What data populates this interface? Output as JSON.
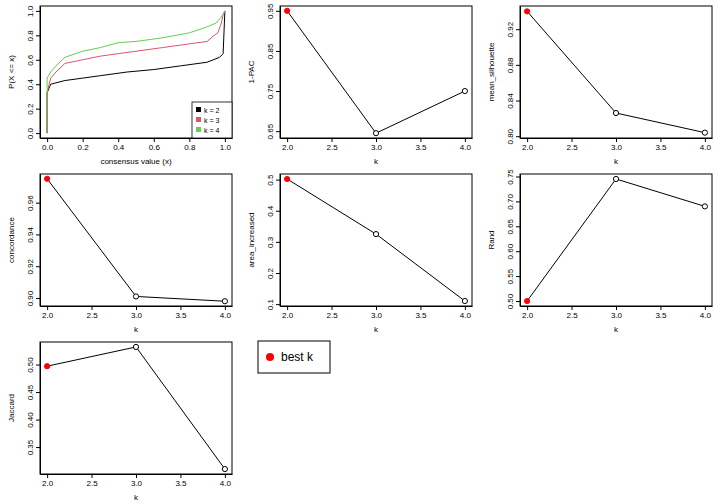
{
  "chart_data": [
    {
      "type": "line",
      "x_label": "consensus value (x)",
      "y_label": "P(X <= x)",
      "legend": "bottom-right",
      "xlim": [
        -0.04,
        1.04
      ],
      "xticks": [
        {
          "value": 0,
          "label": "0.0"
        },
        0.2,
        0.4,
        0.6,
        0.8,
        {
          "value": 1,
          "label": "1.0"
        }
      ],
      "ylim": [
        -0.04,
        1.04
      ],
      "yticks": [
        {
          "value": 0,
          "label": "0.0"
        },
        0.2,
        0.4,
        0.6,
        0.8,
        {
          "value": 1,
          "label": "1.0"
        }
      ],
      "series": [
        {
          "name": "k = 2",
          "color": "#000000",
          "x": [
            0,
            0,
            0.02,
            0.1,
            0.2,
            0.3,
            0.45,
            0.6,
            0.75,
            0.9,
            0.97,
            0.99,
            1.0
          ],
          "values": [
            0,
            0.33,
            0.4,
            0.43,
            0.45,
            0.47,
            0.5,
            0.52,
            0.55,
            0.58,
            0.62,
            0.65,
            1.0
          ]
        },
        {
          "name": "k = 3",
          "color": "#DF536B",
          "x": [
            0,
            0,
            0.02,
            0.05,
            0.1,
            0.2,
            0.3,
            0.4,
            0.5,
            0.65,
            0.8,
            0.9,
            0.94,
            0.96,
            0.98,
            0.99,
            1.0
          ],
          "values": [
            0,
            0.33,
            0.45,
            0.5,
            0.57,
            0.6,
            0.63,
            0.65,
            0.67,
            0.7,
            0.73,
            0.75,
            0.8,
            0.82,
            0.9,
            0.97,
            1.0
          ]
        },
        {
          "name": "k = 4",
          "color": "#61D04F",
          "x": [
            0,
            0,
            0.02,
            0.05,
            0.1,
            0.2,
            0.3,
            0.4,
            0.5,
            0.65,
            0.8,
            0.9,
            0.95,
            0.98,
            1.0
          ],
          "values": [
            0,
            0.45,
            0.5,
            0.55,
            0.62,
            0.67,
            0.7,
            0.74,
            0.75,
            0.78,
            0.82,
            0.87,
            0.9,
            0.95,
            1.0
          ]
        }
      ]
    },
    {
      "type": "line",
      "x_label": "k",
      "y_label": "1-PAC",
      "x": [
        2,
        3,
        4
      ],
      "values": [
        0.95,
        0.645,
        0.75
      ],
      "color": "#000000",
      "colors": [
        "#FF0000",
        "#FFFFFF",
        "#FFFFFF"
      ],
      "marker": "circle",
      "xlim": [
        1.92,
        4.08
      ],
      "xticks": [
        {
          "value": 2,
          "label": "2.0"
        },
        {
          "value": 2.5,
          "label": "2.5"
        },
        {
          "value": 3,
          "label": "3.0"
        },
        {
          "value": 3.5,
          "label": "3.5"
        },
        {
          "value": 4,
          "label": "4.0"
        }
      ],
      "ylim": [
        0.633,
        0.962
      ],
      "yticks": [
        0.65,
        0.75,
        0.85,
        0.95
      ]
    },
    {
      "type": "line",
      "x_label": "k",
      "y_label": "mean_silhouette",
      "x": [
        2,
        3,
        4
      ],
      "values": [
        0.94,
        0.826,
        0.804
      ],
      "color": "#000000",
      "colors": [
        "#FF0000",
        "#FFFFFF",
        "#FFFFFF"
      ],
      "marker": "circle",
      "xlim": [
        1.92,
        4.08
      ],
      "xticks": [
        {
          "value": 2,
          "label": "2.0"
        },
        {
          "value": 2.5,
          "label": "2.5"
        },
        {
          "value": 3,
          "label": "3.0"
        },
        {
          "value": 3.5,
          "label": "3.5"
        },
        {
          "value": 4,
          "label": "4.0"
        }
      ],
      "ylim": [
        0.798,
        0.946
      ],
      "yticks": [
        {
          "value": 0.8,
          "label": "0.80"
        },
        0.84,
        0.88,
        0.92
      ]
    },
    {
      "type": "line",
      "x_label": "k",
      "y_label": "concordance",
      "x": [
        2,
        3,
        4
      ],
      "values": [
        0.975,
        0.901,
        0.898
      ],
      "color": "#000000",
      "colors": [
        "#FF0000",
        "#FFFFFF",
        "#FFFFFF"
      ],
      "marker": "circle",
      "xlim": [
        1.92,
        4.08
      ],
      "xticks": [
        {
          "value": 2,
          "label": "2.0"
        },
        {
          "value": 2.5,
          "label": "2.5"
        },
        {
          "value": 3,
          "label": "3.0"
        },
        {
          "value": 3.5,
          "label": "3.5"
        },
        {
          "value": 4,
          "label": "4.0"
        }
      ],
      "ylim": [
        0.895,
        0.978
      ],
      "yticks": [
        {
          "value": 0.9,
          "label": "0.90"
        },
        0.92,
        0.94,
        0.96
      ]
    },
    {
      "type": "line",
      "x_label": "k",
      "y_label": "area_increased",
      "x": [
        2,
        3,
        4
      ],
      "values": [
        0.502,
        0.325,
        0.11
      ],
      "color": "#000000",
      "colors": [
        "#FF0000",
        "#FFFFFF",
        "#FFFFFF"
      ],
      "marker": "circle",
      "xlim": [
        1.92,
        4.08
      ],
      "xticks": [
        {
          "value": 2,
          "label": "2.0"
        },
        {
          "value": 2.5,
          "label": "2.5"
        },
        {
          "value": 3,
          "label": "3.0"
        },
        {
          "value": 3.5,
          "label": "3.5"
        },
        {
          "value": 4,
          "label": "4.0"
        }
      ],
      "ylim": [
        0.094,
        0.518
      ],
      "yticks": [
        0.1,
        0.2,
        0.3,
        0.4,
        0.5
      ]
    },
    {
      "type": "line",
      "x_label": "k",
      "y_label": "Rand",
      "x": [
        2,
        3,
        4
      ],
      "values": [
        0.5,
        0.745,
        0.69
      ],
      "color": "#000000",
      "colors": [
        "#FF0000",
        "#FFFFFF",
        "#FFFFFF"
      ],
      "marker": "circle",
      "xlim": [
        1.92,
        4.08
      ],
      "xticks": [
        {
          "value": 2,
          "label": "2.0"
        },
        {
          "value": 2.5,
          "label": "2.5"
        },
        {
          "value": 3,
          "label": "3.0"
        },
        {
          "value": 3.5,
          "label": "3.5"
        },
        {
          "value": 4,
          "label": "4.0"
        }
      ],
      "ylim": [
        0.49,
        0.755
      ],
      "yticks": [
        {
          "value": 0.5,
          "label": "0.50"
        },
        0.55,
        {
          "value": 0.6,
          "label": "0.60"
        },
        0.65,
        {
          "value": 0.7,
          "label": "0.70"
        },
        0.75
      ]
    },
    {
      "type": "line",
      "x_label": "k",
      "y_label": "Jaccard",
      "x": [
        2,
        3,
        4
      ],
      "values": [
        0.497,
        0.532,
        0.31
      ],
      "color": "#000000",
      "colors": [
        "#FF0000",
        "#FFFFFF",
        "#FFFFFF"
      ],
      "marker": "circle",
      "xlim": [
        1.92,
        4.08
      ],
      "xticks": [
        {
          "value": 2,
          "label": "2.0"
        },
        {
          "value": 2.5,
          "label": "2.5"
        },
        {
          "value": 3,
          "label": "3.0"
        },
        {
          "value": 3.5,
          "label": "3.5"
        },
        {
          "value": 4,
          "label": "4.0"
        }
      ],
      "ylim": [
        0.301,
        0.541
      ],
      "yticks": [
        0.35,
        {
          "value": 0.4,
          "label": "0.40"
        },
        0.45,
        {
          "value": 0.5,
          "label": "0.50"
        }
      ]
    },
    {
      "type": "legend",
      "series": [
        {
          "name": "best k",
          "color": "#FF0000",
          "marker": "circle"
        }
      ]
    }
  ]
}
